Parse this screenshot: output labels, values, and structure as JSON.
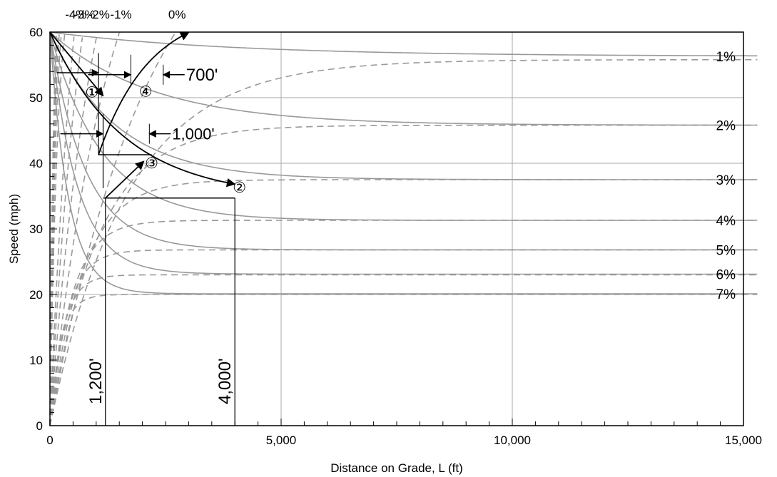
{
  "chart_data": {
    "type": "line",
    "title": "",
    "xlabel": "Distance on Grade, L (ft)",
    "ylabel": "Speed (mph)",
    "xlim": [
      0,
      15000
    ],
    "ylim": [
      0,
      60
    ],
    "x_ticks": [
      "0",
      "5,000",
      "10,000",
      "15,000"
    ],
    "y_ticks": [
      "0",
      "10",
      "20",
      "30",
      "40",
      "50",
      "60"
    ],
    "x_major_grid": [
      5000,
      10000
    ],
    "x_minor_grid_step": 500,
    "y_major_grid": [
      20,
      40,
      50
    ],
    "colors": {
      "curve": "#999999",
      "annotation": "#000000",
      "grid": "#aaaaaa"
    },
    "deceleration_series": [
      {
        "name": "1%",
        "y_steady": 56.3,
        "k": 0.00025
      },
      {
        "name": "2%",
        "y_steady": 45.8,
        "k": 0.00045
      },
      {
        "name": "3%",
        "y_steady": 37.5,
        "k": 0.0007
      },
      {
        "name": "4%",
        "y_steady": 31.3,
        "k": 0.0009
      },
      {
        "name": "5%",
        "y_steady": 26.8,
        "k": 0.0013
      },
      {
        "name": "6%",
        "y_steady": 23.1,
        "k": 0.0017
      },
      {
        "name": "7%",
        "y_steady": 20.1,
        "k": 0.0025
      }
    ],
    "acceleration_series": [
      {
        "name": "",
        "y_steady": 20.0,
        "k": 0.0042
      },
      {
        "name": "",
        "y_steady": 23.0,
        "k": 0.0035
      },
      {
        "name": "",
        "y_steady": 26.8,
        "k": 0.0027
      },
      {
        "name": "",
        "y_steady": 31.3,
        "k": 0.0021
      },
      {
        "name": "",
        "y_steady": 37.5,
        "k": 0.0014
      },
      {
        "name": "",
        "y_steady": 45.8,
        "k": 0.00095
      },
      {
        "name": "",
        "y_steady": 55.8,
        "k": 0.0006
      }
    ],
    "top_acceleration_series": [
      {
        "name": "0%",
        "y_steady": 85,
        "k": 0.00045
      },
      {
        "name": "-1%",
        "y_steady": 90,
        "k": 0.00073
      },
      {
        "name": "-2%",
        "y_steady": 95,
        "k": 0.00097
      },
      {
        "name": "-3%",
        "y_steady": 100,
        "k": 0.00128
      },
      {
        "name": "-4%",
        "y_steady": 105,
        "k": 0.0016
      }
    ],
    "steep_acceleration_curves": [
      0.006,
      0.0078,
      0.0096,
      0.0115,
      0.0135
    ],
    "annotations": {
      "distances": [
        {
          "label": "1,200'",
          "x": 1200,
          "y_top": 34.7
        },
        {
          "label": "4,000'",
          "x": 4000,
          "y_top": 34.7
        },
        {
          "label": "700'",
          "x1": 1750,
          "x2": 2450,
          "y": 53.5
        },
        {
          "label": "1,000'",
          "x1": 1150,
          "x2": 2150,
          "y": 44.5
        }
      ],
      "steps": [
        {
          "label": "①",
          "x": 910,
          "y": 50.8
        },
        {
          "label": "②",
          "x": 4100,
          "y": 36.3
        },
        {
          "label": "③",
          "x": 2200,
          "y": 40.0
        },
        {
          "label": "④",
          "x": 2070,
          "y": 50.9
        }
      ],
      "horizontal_lines": [
        {
          "x1": 1150,
          "x2": 4000,
          "y": 34.7
        },
        {
          "x1": 1050,
          "x2": 2200,
          "y": 41.3
        }
      ],
      "vertical_lines": [
        {
          "x": 1050,
          "y1": 41.3,
          "y2": 56.8
        },
        {
          "x": 1150,
          "y1": 36.2,
          "y2": 47.2
        }
      ]
    }
  }
}
